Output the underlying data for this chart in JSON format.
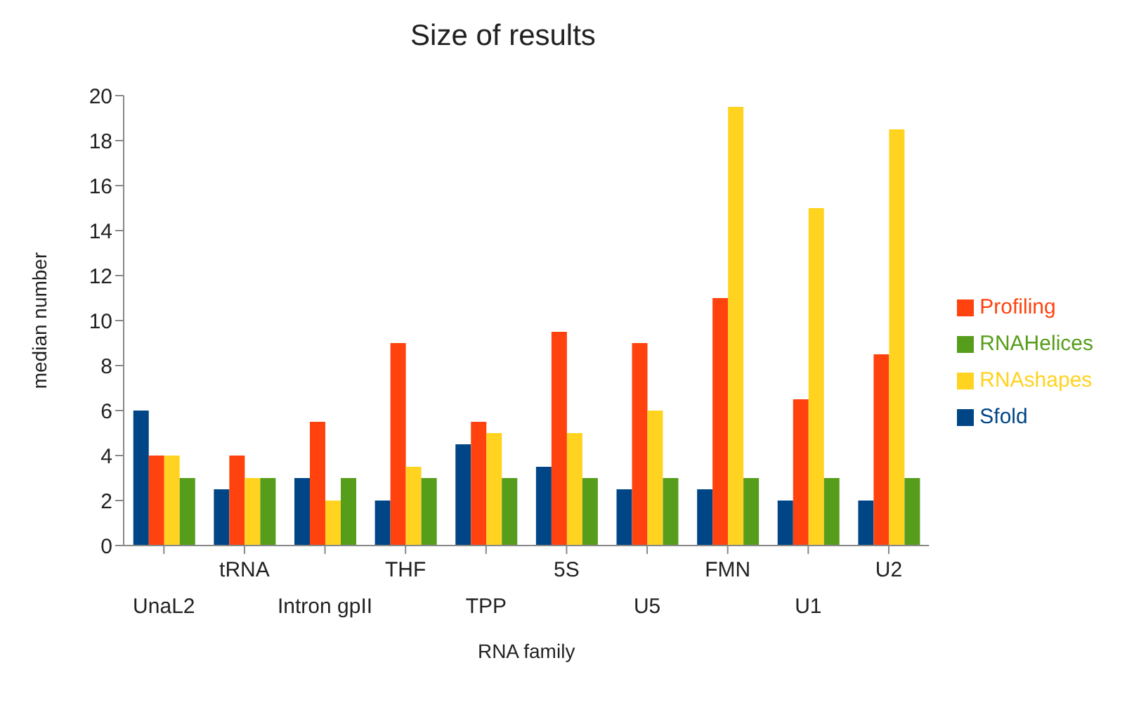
{
  "chart_data": {
    "type": "bar",
    "title": "Size of results",
    "xlabel": "RNA family",
    "ylabel": "median number",
    "categories": [
      "UnaL2",
      "tRNA",
      "Intron gpII",
      "THF",
      "TPP",
      "5S",
      "U5",
      "FMN",
      "U1",
      "U2"
    ],
    "series": [
      {
        "name": "Sfold",
        "color": "#004586",
        "values": [
          6,
          2.5,
          3,
          2,
          4.5,
          3.5,
          2.5,
          2.5,
          2,
          2
        ]
      },
      {
        "name": "Profiling",
        "color": "#ff420e",
        "values": [
          4,
          4,
          5.5,
          9,
          5.5,
          9.5,
          9,
          11,
          6.5,
          8.5
        ]
      },
      {
        "name": "RNAshapes",
        "color": "#ffd320",
        "values": [
          4,
          3,
          2,
          3.5,
          5,
          5,
          6,
          19.5,
          15,
          18.5
        ]
      },
      {
        "name": "RNAHelices",
        "color": "#579d1c",
        "values": [
          3,
          3,
          3,
          3,
          3,
          3,
          3,
          3,
          3,
          3
        ]
      }
    ],
    "ylim": [
      0,
      20
    ],
    "yticks": [
      0,
      2,
      4,
      6,
      8,
      10,
      12,
      14,
      16,
      18,
      20
    ],
    "grid": false,
    "legend": "right"
  }
}
